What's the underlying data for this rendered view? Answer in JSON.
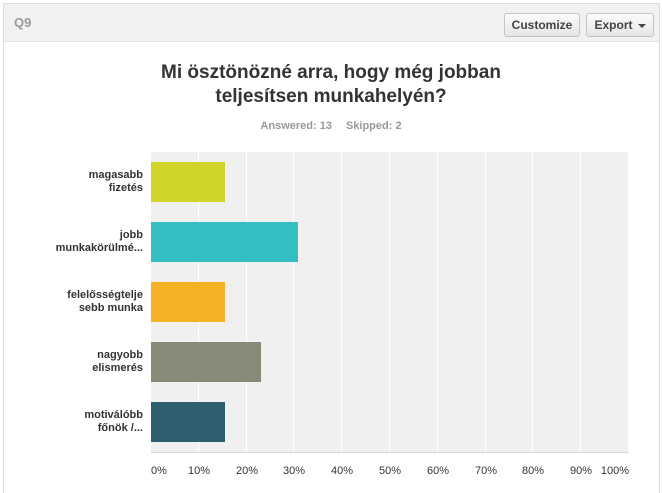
{
  "header": {
    "question_label": "Q9",
    "customize_label": "Customize",
    "export_label": "Export"
  },
  "title_lines": [
    "Mi ösztönözné arra, hogy még jobban",
    "teljesítsen munkahelyén?"
  ],
  "stats": {
    "answered": "Answered: 13",
    "skipped": "Skipped: 2"
  },
  "icons": {
    "export_dropdown": "caret-down-icon"
  },
  "chart_data": {
    "type": "bar",
    "orientation": "horizontal",
    "categories": [
      [
        "magasabb",
        "fizetés"
      ],
      [
        "jobb",
        "munkakörülmé..."
      ],
      [
        "felelősségtelje",
        "sebb munka"
      ],
      [
        "nagyobb",
        "elismerés"
      ],
      [
        "motiválóbb",
        "főnök /..."
      ]
    ],
    "values": [
      15.38,
      30.77,
      15.38,
      23.08,
      15.38
    ],
    "colors": [
      "#d0d52b",
      "#33bfc2",
      "#f6b226",
      "#888a78",
      "#2d5f6e"
    ],
    "xlim": [
      0,
      100
    ],
    "xtick_labels": [
      "0%",
      "10%",
      "20%",
      "30%",
      "40%",
      "50%",
      "60%",
      "70%",
      "80%",
      "90%",
      "100%"
    ],
    "xtick_values": [
      0,
      10,
      20,
      30,
      40,
      50,
      60,
      70,
      80,
      90,
      100
    ],
    "grid": true,
    "plot_background": "#f0f0f0"
  }
}
